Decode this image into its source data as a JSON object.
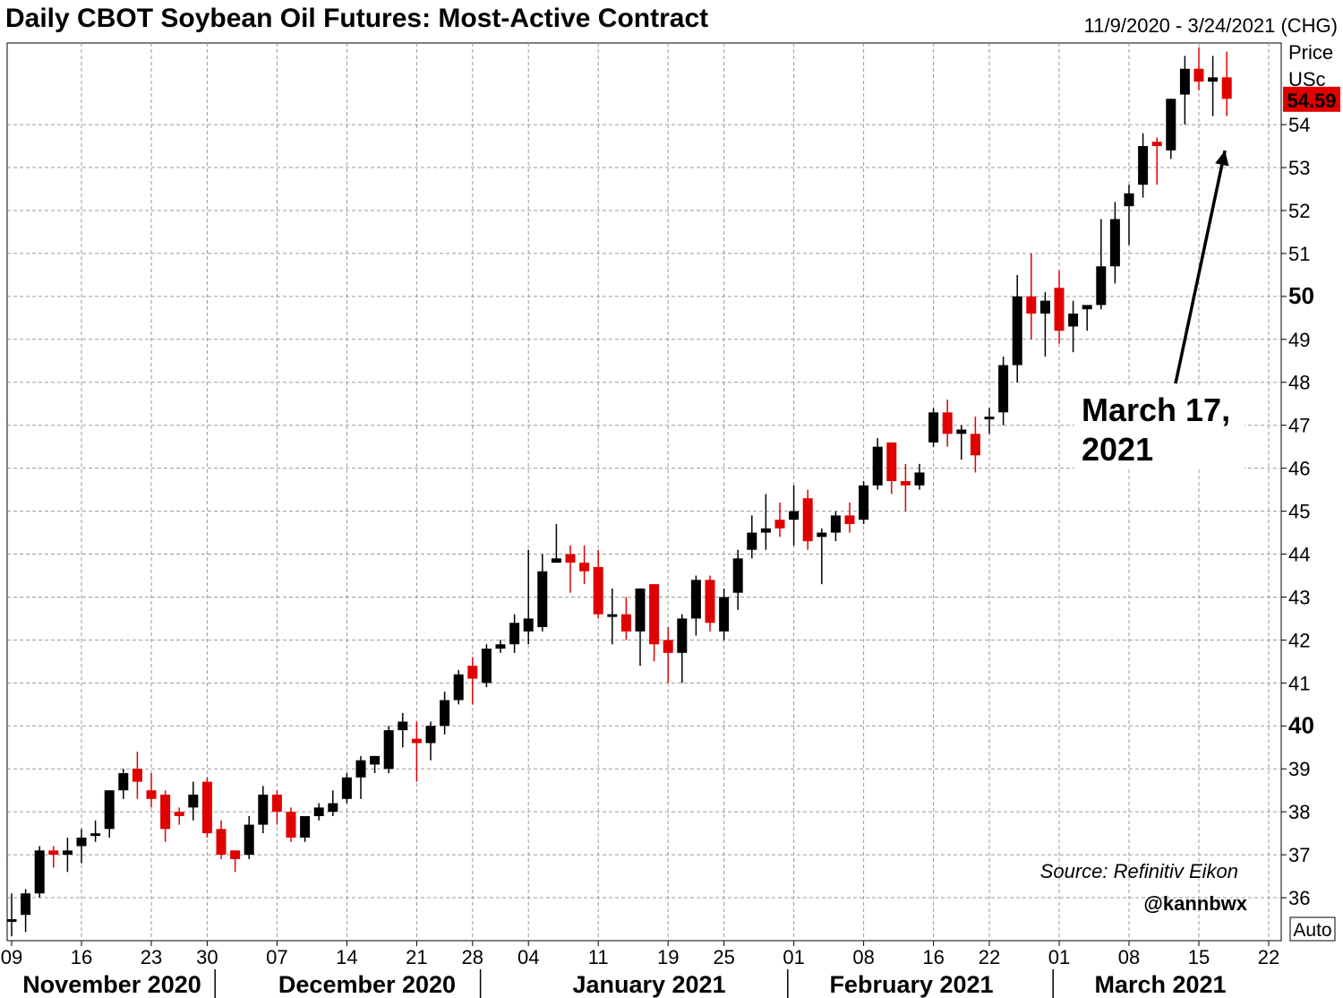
{
  "title": "Daily CBOT Soybean Oil Futures: Most-Active Contract",
  "date_range": "11/9/2020 - 3/24/2021 (CHG)",
  "colors": {
    "up": "#000000",
    "down": "#e00000",
    "grid": "#9a9a9a",
    "last_price_bg": "#e00000"
  },
  "chart_data": {
    "type": "candlestick",
    "y_axis": {
      "label_line1": "Price",
      "label_line2": "USc",
      "ylim": [
        35.0,
        55.9
      ],
      "ticks": [
        36,
        37,
        38,
        39,
        40,
        41,
        42,
        43,
        44,
        45,
        46,
        47,
        48,
        49,
        50,
        51,
        52,
        53,
        54
      ],
      "bold_ticks": [
        40,
        50
      ],
      "position": "right",
      "scale_mode": "Auto"
    },
    "last_price": "54.59",
    "x_axis": {
      "day_ticks": [
        "09",
        "16",
        "23",
        "30",
        "07",
        "14",
        "21",
        "28",
        "04",
        "11",
        "19",
        "25",
        "01",
        "08",
        "16",
        "22",
        "01",
        "08",
        "15",
        "22"
      ],
      "months": [
        "November 2020",
        "December 2020",
        "January 2021",
        "February 2021",
        "March 2021"
      ]
    },
    "grid": true,
    "candles": [
      {
        "o": 35.5,
        "h": 36.1,
        "l": 35.1,
        "c": 35.5
      },
      {
        "o": 35.6,
        "h": 36.2,
        "l": 35.2,
        "c": 36.1
      },
      {
        "o": 36.1,
        "h": 37.2,
        "l": 36.0,
        "c": 37.1
      },
      {
        "o": 37.1,
        "h": 37.2,
        "l": 36.7,
        "c": 37.0
      },
      {
        "o": 37.0,
        "h": 37.4,
        "l": 36.6,
        "c": 37.1
      },
      {
        "o": 37.2,
        "h": 37.6,
        "l": 36.8,
        "c": 37.4
      },
      {
        "o": 37.5,
        "h": 37.8,
        "l": 37.3,
        "c": 37.5
      },
      {
        "o": 37.6,
        "h": 38.5,
        "l": 37.4,
        "c": 38.5
      },
      {
        "o": 38.5,
        "h": 39.0,
        "l": 38.3,
        "c": 38.9
      },
      {
        "o": 39.0,
        "h": 39.4,
        "l": 38.3,
        "c": 38.7
      },
      {
        "o": 38.5,
        "h": 38.9,
        "l": 38.1,
        "c": 38.3
      },
      {
        "o": 38.4,
        "h": 38.5,
        "l": 37.3,
        "c": 37.6
      },
      {
        "o": 38.0,
        "h": 38.1,
        "l": 37.7,
        "c": 37.9
      },
      {
        "o": 38.1,
        "h": 38.7,
        "l": 37.8,
        "c": 38.4
      },
      {
        "o": 38.7,
        "h": 38.8,
        "l": 37.4,
        "c": 37.5
      },
      {
        "o": 37.6,
        "h": 37.8,
        "l": 36.9,
        "c": 37.0
      },
      {
        "o": 37.1,
        "h": 37.1,
        "l": 36.6,
        "c": 36.9
      },
      {
        "o": 37.0,
        "h": 37.9,
        "l": 36.9,
        "c": 37.7
      },
      {
        "o": 37.7,
        "h": 38.6,
        "l": 37.5,
        "c": 38.4
      },
      {
        "o": 38.4,
        "h": 38.5,
        "l": 37.7,
        "c": 38.0
      },
      {
        "o": 38.0,
        "h": 38.1,
        "l": 37.3,
        "c": 37.4
      },
      {
        "o": 37.4,
        "h": 37.9,
        "l": 37.3,
        "c": 37.9
      },
      {
        "o": 37.9,
        "h": 38.2,
        "l": 37.8,
        "c": 38.1
      },
      {
        "o": 38.0,
        "h": 38.5,
        "l": 37.9,
        "c": 38.2
      },
      {
        "o": 38.3,
        "h": 38.9,
        "l": 38.2,
        "c": 38.8
      },
      {
        "o": 38.8,
        "h": 39.3,
        "l": 38.3,
        "c": 39.2
      },
      {
        "o": 39.1,
        "h": 39.3,
        "l": 38.9,
        "c": 39.3
      },
      {
        "o": 39.0,
        "h": 40.0,
        "l": 38.9,
        "c": 39.9
      },
      {
        "o": 39.9,
        "h": 40.3,
        "l": 39.5,
        "c": 40.1
      },
      {
        "o": 39.7,
        "h": 40.1,
        "l": 38.7,
        "c": 39.6
      },
      {
        "o": 39.6,
        "h": 40.1,
        "l": 39.2,
        "c": 40.0
      },
      {
        "o": 40.0,
        "h": 40.8,
        "l": 39.8,
        "c": 40.6
      },
      {
        "o": 40.6,
        "h": 41.3,
        "l": 40.5,
        "c": 41.2
      },
      {
        "o": 41.4,
        "h": 41.6,
        "l": 40.5,
        "c": 41.1
      },
      {
        "o": 41.0,
        "h": 41.9,
        "l": 40.9,
        "c": 41.8
      },
      {
        "o": 41.8,
        "h": 42.0,
        "l": 41.7,
        "c": 41.9
      },
      {
        "o": 41.9,
        "h": 42.6,
        "l": 41.7,
        "c": 42.4
      },
      {
        "o": 42.2,
        "h": 44.1,
        "l": 41.9,
        "c": 42.5
      },
      {
        "o": 42.3,
        "h": 44.0,
        "l": 42.2,
        "c": 43.6
      },
      {
        "o": 43.8,
        "h": 44.7,
        "l": 43.8,
        "c": 43.9
      },
      {
        "o": 44.0,
        "h": 44.2,
        "l": 43.1,
        "c": 43.8
      },
      {
        "o": 43.8,
        "h": 44.2,
        "l": 43.3,
        "c": 43.6
      },
      {
        "o": 43.7,
        "h": 44.1,
        "l": 42.5,
        "c": 42.6
      },
      {
        "o": 42.6,
        "h": 43.2,
        "l": 41.9,
        "c": 42.6
      },
      {
        "o": 42.6,
        "h": 43.0,
        "l": 42.0,
        "c": 42.2
      },
      {
        "o": 42.2,
        "h": 43.2,
        "l": 41.4,
        "c": 43.2
      },
      {
        "o": 43.3,
        "h": 43.3,
        "l": 41.5,
        "c": 41.9
      },
      {
        "o": 42.0,
        "h": 42.3,
        "l": 41.0,
        "c": 41.7
      },
      {
        "o": 41.7,
        "h": 42.6,
        "l": 41.0,
        "c": 42.5
      },
      {
        "o": 42.5,
        "h": 43.5,
        "l": 42.1,
        "c": 43.4
      },
      {
        "o": 43.4,
        "h": 43.5,
        "l": 42.2,
        "c": 42.4
      },
      {
        "o": 42.2,
        "h": 43.2,
        "l": 42.0,
        "c": 43.0
      },
      {
        "o": 43.1,
        "h": 44.1,
        "l": 42.7,
        "c": 43.9
      },
      {
        "o": 44.1,
        "h": 44.9,
        "l": 43.9,
        "c": 44.5
      },
      {
        "o": 44.5,
        "h": 45.4,
        "l": 44.1,
        "c": 44.6
      },
      {
        "o": 44.8,
        "h": 45.2,
        "l": 44.4,
        "c": 44.6
      },
      {
        "o": 44.8,
        "h": 45.6,
        "l": 44.2,
        "c": 45.0
      },
      {
        "o": 45.3,
        "h": 45.5,
        "l": 44.1,
        "c": 44.3
      },
      {
        "o": 44.4,
        "h": 44.6,
        "l": 43.3,
        "c": 44.5
      },
      {
        "o": 44.5,
        "h": 45.0,
        "l": 44.3,
        "c": 44.9
      },
      {
        "o": 44.9,
        "h": 45.2,
        "l": 44.5,
        "c": 44.7
      },
      {
        "o": 44.8,
        "h": 45.7,
        "l": 44.7,
        "c": 45.6
      },
      {
        "o": 45.6,
        "h": 46.7,
        "l": 45.5,
        "c": 46.5
      },
      {
        "o": 46.6,
        "h": 46.6,
        "l": 45.4,
        "c": 45.7
      },
      {
        "o": 45.7,
        "h": 46.1,
        "l": 45.0,
        "c": 45.6
      },
      {
        "o": 45.6,
        "h": 46.1,
        "l": 45.5,
        "c": 45.9
      },
      {
        "o": 46.6,
        "h": 47.4,
        "l": 46.5,
        "c": 47.3
      },
      {
        "o": 47.3,
        "h": 47.6,
        "l": 46.5,
        "c": 46.8
      },
      {
        "o": 46.8,
        "h": 47.0,
        "l": 46.2,
        "c": 46.9
      },
      {
        "o": 46.8,
        "h": 47.2,
        "l": 45.9,
        "c": 46.3
      },
      {
        "o": 47.2,
        "h": 47.4,
        "l": 46.8,
        "c": 47.2
      },
      {
        "o": 47.3,
        "h": 48.6,
        "l": 47.0,
        "c": 48.4
      },
      {
        "o": 48.4,
        "h": 50.5,
        "l": 48.0,
        "c": 50.0
      },
      {
        "o": 50.0,
        "h": 51.0,
        "l": 49.0,
        "c": 49.6
      },
      {
        "o": 49.6,
        "h": 50.1,
        "l": 48.6,
        "c": 49.9
      },
      {
        "o": 50.2,
        "h": 50.6,
        "l": 48.9,
        "c": 49.2
      },
      {
        "o": 49.3,
        "h": 49.9,
        "l": 48.7,
        "c": 49.6
      },
      {
        "o": 49.7,
        "h": 49.8,
        "l": 49.2,
        "c": 49.8
      },
      {
        "o": 49.8,
        "h": 51.8,
        "l": 49.7,
        "c": 50.7
      },
      {
        "o": 50.7,
        "h": 52.2,
        "l": 50.3,
        "c": 51.8
      },
      {
        "o": 52.1,
        "h": 52.6,
        "l": 51.2,
        "c": 52.4
      },
      {
        "o": 52.6,
        "h": 53.8,
        "l": 52.3,
        "c": 53.5
      },
      {
        "o": 53.6,
        "h": 53.7,
        "l": 52.6,
        "c": 53.5
      },
      {
        "o": 53.4,
        "h": 54.6,
        "l": 53.2,
        "c": 54.6
      },
      {
        "o": 54.7,
        "h": 55.6,
        "l": 54.0,
        "c": 55.3
      },
      {
        "o": 55.3,
        "h": 55.8,
        "l": 54.8,
        "c": 55.0
      },
      {
        "o": 55.0,
        "h": 55.6,
        "l": 54.2,
        "c": 55.1
      },
      {
        "o": 55.1,
        "h": 55.7,
        "l": 54.2,
        "c": 54.6
      }
    ],
    "annotation": {
      "line1": "March 17,",
      "line2": "2021",
      "arrow_target_candle": 87
    },
    "source": "Source: Refinitiv Eikon",
    "handle": "@kannbwx"
  }
}
